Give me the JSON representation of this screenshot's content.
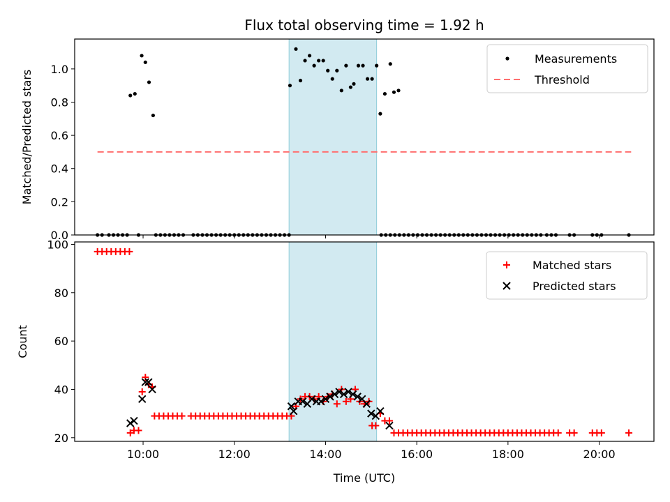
{
  "chart_data": [
    {
      "type": "scatter",
      "title": "Flux total observing time = 1.92 h",
      "ylabel": "Matched/Predicted stars",
      "xlim_hours": [
        8.5,
        21.2
      ],
      "ylim": [
        0,
        1.18
      ],
      "yticks": [
        0.0,
        0.2,
        0.4,
        0.6,
        0.8,
        1.0
      ],
      "ytick_labels": [
        "0.0",
        "0.2",
        "0.4",
        "0.6",
        "0.8",
        "1.0"
      ],
      "grid": false,
      "legend_position": "top-right",
      "shaded_interval_hours": [
        13.2,
        15.12
      ],
      "shade_color": "#add8e6",
      "threshold": {
        "name": "Threshold",
        "value": 0.5,
        "x_range_hours": [
          9.0,
          20.7
        ],
        "color": "#ff6f6f"
      },
      "measurements": {
        "name": "Measurements",
        "color": "#000000",
        "points": [
          [
            9.72,
            0.84
          ],
          [
            9.82,
            0.85
          ],
          [
            9.97,
            1.08
          ],
          [
            10.05,
            1.04
          ],
          [
            10.13,
            0.92
          ],
          [
            10.22,
            0.72
          ],
          [
            13.22,
            0.9
          ],
          [
            13.35,
            1.12
          ],
          [
            13.45,
            0.93
          ],
          [
            13.55,
            1.05
          ],
          [
            13.65,
            1.08
          ],
          [
            13.75,
            1.02
          ],
          [
            13.85,
            1.05
          ],
          [
            13.95,
            1.05
          ],
          [
            14.05,
            0.99
          ],
          [
            14.15,
            0.94
          ],
          [
            14.25,
            0.99
          ],
          [
            14.35,
            0.87
          ],
          [
            14.45,
            1.02
          ],
          [
            14.55,
            0.89
          ],
          [
            14.62,
            0.91
          ],
          [
            14.72,
            1.02
          ],
          [
            14.82,
            1.02
          ],
          [
            14.92,
            0.94
          ],
          [
            15.02,
            0.94
          ],
          [
            15.12,
            1.02
          ],
          [
            15.2,
            0.73
          ],
          [
            15.3,
            0.85
          ],
          [
            15.42,
            1.03
          ],
          [
            15.5,
            0.86
          ],
          [
            15.6,
            0.87
          ]
        ],
        "zero_times": [
          9.0,
          9.1,
          9.25,
          9.35,
          9.45,
          9.55,
          9.65,
          9.9,
          10.28,
          10.38,
          10.48,
          10.58,
          10.68,
          10.78,
          10.88,
          11.1,
          11.2,
          11.3,
          11.4,
          11.5,
          11.6,
          11.7,
          11.8,
          11.9,
          12.0,
          12.1,
          12.2,
          12.3,
          12.4,
          12.5,
          12.6,
          12.7,
          12.8,
          12.9,
          13.0,
          13.1,
          13.2,
          15.22,
          15.32,
          15.42,
          15.52,
          15.62,
          15.72,
          15.82,
          15.92,
          16.02,
          16.12,
          16.22,
          16.32,
          16.42,
          16.52,
          16.62,
          16.72,
          16.82,
          16.92,
          17.02,
          17.12,
          17.22,
          17.32,
          17.42,
          17.52,
          17.62,
          17.72,
          17.82,
          17.92,
          18.02,
          18.12,
          18.22,
          18.32,
          18.42,
          18.52,
          18.62,
          18.72,
          18.85,
          18.95,
          19.05,
          19.35,
          19.45,
          19.85,
          19.95,
          20.05,
          20.65
        ]
      }
    },
    {
      "type": "scatter",
      "xlabel": "Time (UTC)",
      "ylabel": "Count",
      "xlim_hours": [
        8.5,
        21.2
      ],
      "ylim": [
        18.5,
        101
      ],
      "xticks_hours": [
        10,
        12,
        14,
        16,
        18,
        20
      ],
      "xtick_labels": [
        "10:00",
        "12:00",
        "14:00",
        "16:00",
        "18:00",
        "20:00"
      ],
      "yticks": [
        20,
        40,
        60,
        80,
        100
      ],
      "ytick_labels": [
        "20",
        "40",
        "60",
        "80",
        "100"
      ],
      "grid": false,
      "legend_position": "top-right",
      "shaded_interval_hours": [
        13.2,
        15.12
      ],
      "shade_color": "#add8e6",
      "matched": {
        "name": "Matched stars",
        "color": "#ff0000",
        "points": [
          [
            9.0,
            97
          ],
          [
            9.1,
            97
          ],
          [
            9.2,
            97
          ],
          [
            9.3,
            97
          ],
          [
            9.4,
            97
          ],
          [
            9.5,
            97
          ],
          [
            9.6,
            97
          ],
          [
            9.7,
            97
          ],
          [
            9.72,
            22
          ],
          [
            9.8,
            23
          ],
          [
            9.9,
            23
          ],
          [
            9.98,
            39
          ],
          [
            10.05,
            45
          ],
          [
            10.12,
            42
          ],
          [
            10.2,
            41
          ],
          [
            10.25,
            29
          ],
          [
            10.35,
            29
          ],
          [
            10.45,
            29
          ],
          [
            10.55,
            29
          ],
          [
            10.65,
            29
          ],
          [
            10.75,
            29
          ],
          [
            10.85,
            29
          ],
          [
            11.05,
            29
          ],
          [
            11.15,
            29
          ],
          [
            11.25,
            29
          ],
          [
            11.35,
            29
          ],
          [
            11.45,
            29
          ],
          [
            11.55,
            29
          ],
          [
            11.65,
            29
          ],
          [
            11.75,
            29
          ],
          [
            11.85,
            29
          ],
          [
            11.95,
            29
          ],
          [
            12.05,
            29
          ],
          [
            12.15,
            29
          ],
          [
            12.25,
            29
          ],
          [
            12.35,
            29
          ],
          [
            12.45,
            29
          ],
          [
            12.55,
            29
          ],
          [
            12.65,
            29
          ],
          [
            12.75,
            29
          ],
          [
            12.85,
            29
          ],
          [
            12.95,
            29
          ],
          [
            13.05,
            29
          ],
          [
            13.15,
            29
          ],
          [
            13.25,
            29
          ],
          [
            13.35,
            33
          ],
          [
            13.45,
            36
          ],
          [
            13.55,
            37
          ],
          [
            13.65,
            37
          ],
          [
            13.75,
            36
          ],
          [
            13.85,
            37
          ],
          [
            13.95,
            35
          ],
          [
            14.05,
            37
          ],
          [
            14.15,
            38
          ],
          [
            14.25,
            34
          ],
          [
            14.35,
            40
          ],
          [
            14.45,
            35
          ],
          [
            14.55,
            36
          ],
          [
            14.65,
            40
          ],
          [
            14.75,
            35
          ],
          [
            14.85,
            34
          ],
          [
            14.95,
            35
          ],
          [
            15.02,
            25
          ],
          [
            15.1,
            25
          ],
          [
            15.2,
            30
          ],
          [
            15.3,
            27
          ],
          [
            15.4,
            27
          ],
          [
            15.5,
            22
          ],
          [
            15.6,
            22
          ],
          [
            15.7,
            22
          ],
          [
            15.8,
            22
          ],
          [
            15.9,
            22
          ],
          [
            16.0,
            22
          ],
          [
            16.1,
            22
          ],
          [
            16.2,
            22
          ],
          [
            16.3,
            22
          ],
          [
            16.4,
            22
          ],
          [
            16.5,
            22
          ],
          [
            16.6,
            22
          ],
          [
            16.7,
            22
          ],
          [
            16.8,
            22
          ],
          [
            16.9,
            22
          ],
          [
            17.0,
            22
          ],
          [
            17.1,
            22
          ],
          [
            17.2,
            22
          ],
          [
            17.3,
            22
          ],
          [
            17.4,
            22
          ],
          [
            17.5,
            22
          ],
          [
            17.6,
            22
          ],
          [
            17.7,
            22
          ],
          [
            17.8,
            22
          ],
          [
            17.9,
            22
          ],
          [
            18.0,
            22
          ],
          [
            18.1,
            22
          ],
          [
            18.2,
            22
          ],
          [
            18.3,
            22
          ],
          [
            18.4,
            22
          ],
          [
            18.5,
            22
          ],
          [
            18.6,
            22
          ],
          [
            18.7,
            22
          ],
          [
            18.8,
            22
          ],
          [
            18.9,
            22
          ],
          [
            19.0,
            22
          ],
          [
            19.1,
            22
          ],
          [
            19.35,
            22
          ],
          [
            19.45,
            22
          ],
          [
            19.85,
            22
          ],
          [
            19.95,
            22
          ],
          [
            20.05,
            22
          ],
          [
            20.65,
            22
          ]
        ]
      },
      "predicted": {
        "name": "Predicted stars",
        "color": "#000000",
        "points": [
          [
            9.72,
            26
          ],
          [
            9.8,
            27
          ],
          [
            9.98,
            36
          ],
          [
            10.05,
            43
          ],
          [
            10.12,
            43
          ],
          [
            10.2,
            40
          ],
          [
            13.25,
            33
          ],
          [
            13.3,
            31
          ],
          [
            13.4,
            35
          ],
          [
            13.5,
            35
          ],
          [
            13.6,
            34
          ],
          [
            13.7,
            36
          ],
          [
            13.8,
            35
          ],
          [
            13.9,
            35
          ],
          [
            14.0,
            36
          ],
          [
            14.1,
            37
          ],
          [
            14.2,
            38
          ],
          [
            14.3,
            39
          ],
          [
            14.4,
            38
          ],
          [
            14.5,
            39
          ],
          [
            14.6,
            38
          ],
          [
            14.7,
            37
          ],
          [
            14.8,
            36
          ],
          [
            14.9,
            34
          ],
          [
            15.0,
            30
          ],
          [
            15.1,
            29
          ],
          [
            15.2,
            31
          ],
          [
            15.4,
            25
          ]
        ]
      }
    }
  ]
}
